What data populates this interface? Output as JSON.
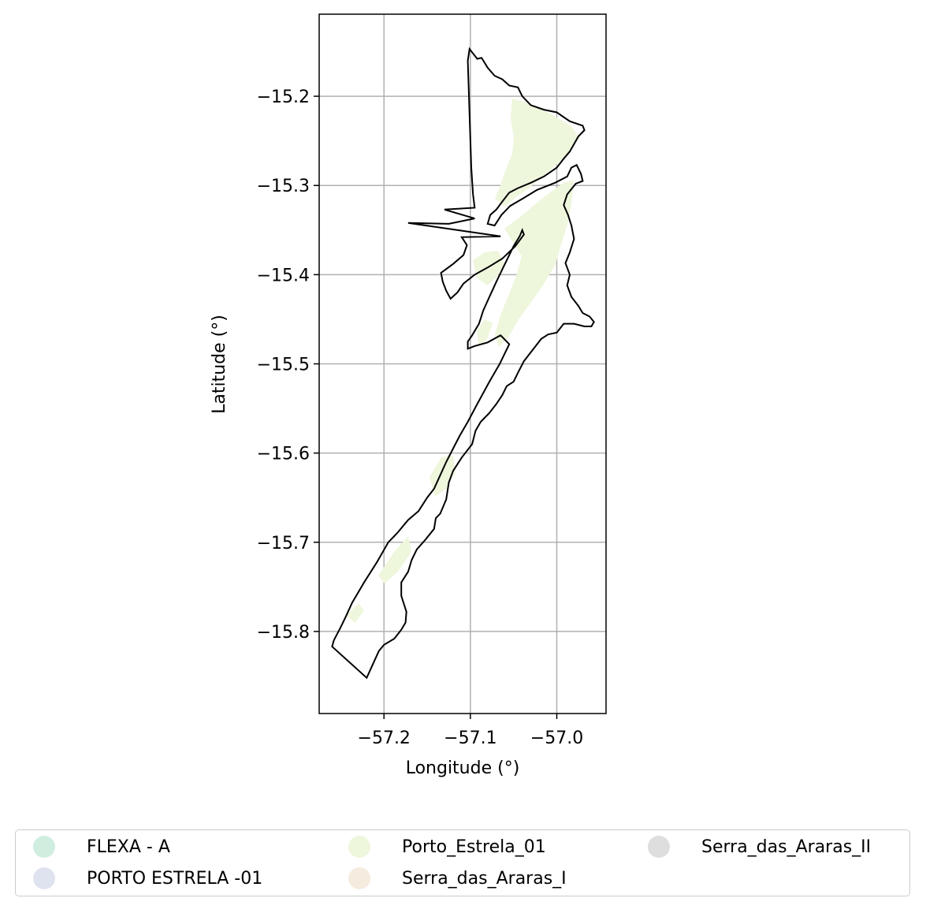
{
  "chart_data": {
    "type": "map",
    "xlabel": "Longitude (°)",
    "ylabel": "Latitude (°)",
    "xlim": [
      -57.275,
      -56.943
    ],
    "ylim": [
      -15.892,
      -15.108
    ],
    "xticks": [
      -57.2,
      -57.1,
      -57.0
    ],
    "xtick_labels": [
      "−57.2",
      "−57.1",
      "−57.0"
    ],
    "yticks": [
      -15.2,
      -15.3,
      -15.4,
      -15.5,
      -15.6,
      -15.7,
      -15.8
    ],
    "ytick_labels": [
      "−15.2",
      "−15.3",
      "−15.4",
      "−15.5",
      "−15.6",
      "−15.7",
      "−15.8"
    ],
    "grid": true,
    "legend_position": "below",
    "boundary": [
      [
        -57.101,
        -15.147
      ],
      [
        -57.097,
        -15.152
      ],
      [
        -57.092,
        -15.158
      ],
      [
        -57.087,
        -15.157
      ],
      [
        -57.08,
        -15.168
      ],
      [
        -57.072,
        -15.177
      ],
      [
        -57.063,
        -15.181
      ],
      [
        -57.055,
        -15.188
      ],
      [
        -57.045,
        -15.19
      ],
      [
        -57.04,
        -15.2
      ],
      [
        -57.03,
        -15.21
      ],
      [
        -57.015,
        -15.215
      ],
      [
        -57.0,
        -15.218
      ],
      [
        -56.985,
        -15.228
      ],
      [
        -56.97,
        -15.233
      ],
      [
        -56.968,
        -15.238
      ],
      [
        -56.975,
        -15.245
      ],
      [
        -56.985,
        -15.262
      ],
      [
        -56.992,
        -15.27
      ],
      [
        -57.0,
        -15.28
      ],
      [
        -57.015,
        -15.29
      ],
      [
        -57.03,
        -15.297
      ],
      [
        -57.045,
        -15.303
      ],
      [
        -57.055,
        -15.308
      ],
      [
        -57.063,
        -15.318
      ],
      [
        -57.07,
        -15.327
      ],
      [
        -57.077,
        -15.333
      ],
      [
        -57.08,
        -15.343
      ],
      [
        -57.072,
        -15.345
      ],
      [
        -57.064,
        -15.333
      ],
      [
        -57.054,
        -15.323
      ],
      [
        -57.04,
        -15.315
      ],
      [
        -57.023,
        -15.305
      ],
      [
        -57.002,
        -15.297
      ],
      [
        -56.988,
        -15.29
      ],
      [
        -56.983,
        -15.28
      ],
      [
        -56.977,
        -15.277
      ],
      [
        -56.972,
        -15.287
      ],
      [
        -56.97,
        -15.295
      ],
      [
        -56.978,
        -15.298
      ],
      [
        -56.988,
        -15.31
      ],
      [
        -56.992,
        -15.322
      ],
      [
        -56.987,
        -15.333
      ],
      [
        -56.983,
        -15.345
      ],
      [
        -56.98,
        -15.36
      ],
      [
        -56.985,
        -15.375
      ],
      [
        -56.99,
        -15.387
      ],
      [
        -56.985,
        -15.4
      ],
      [
        -56.988,
        -15.412
      ],
      [
        -56.983,
        -15.425
      ],
      [
        -56.975,
        -15.435
      ],
      [
        -56.97,
        -15.443
      ],
      [
        -56.962,
        -15.447
      ],
      [
        -56.957,
        -15.453
      ],
      [
        -56.96,
        -15.458
      ],
      [
        -56.968,
        -15.458
      ],
      [
        -56.98,
        -15.455
      ],
      [
        -56.992,
        -15.455
      ],
      [
        -57.0,
        -15.465
      ],
      [
        -57.01,
        -15.467
      ],
      [
        -57.018,
        -15.472
      ],
      [
        -57.03,
        -15.487
      ],
      [
        -57.038,
        -15.497
      ],
      [
        -57.045,
        -15.51
      ],
      [
        -57.05,
        -15.52
      ],
      [
        -57.058,
        -15.525
      ],
      [
        -57.063,
        -15.535
      ],
      [
        -57.07,
        -15.545
      ],
      [
        -57.078,
        -15.555
      ],
      [
        -57.088,
        -15.565
      ],
      [
        -57.094,
        -15.575
      ],
      [
        -57.098,
        -15.59
      ],
      [
        -57.11,
        -15.605
      ],
      [
        -57.12,
        -15.62
      ],
      [
        -57.125,
        -15.633
      ],
      [
        -57.128,
        -15.652
      ],
      [
        -57.135,
        -15.668
      ],
      [
        -57.14,
        -15.673
      ],
      [
        -57.142,
        -15.685
      ],
      [
        -57.152,
        -15.697
      ],
      [
        -57.162,
        -15.708
      ],
      [
        -57.168,
        -15.72
      ],
      [
        -57.172,
        -15.733
      ],
      [
        -57.18,
        -15.745
      ],
      [
        -57.18,
        -15.76
      ],
      [
        -57.174,
        -15.778
      ],
      [
        -57.175,
        -15.79
      ],
      [
        -57.18,
        -15.798
      ],
      [
        -57.188,
        -15.808
      ],
      [
        -57.2,
        -15.815
      ],
      [
        -57.206,
        -15.822
      ],
      [
        -57.22,
        -15.852
      ],
      [
        -57.26,
        -15.817
      ],
      [
        -57.258,
        -15.81
      ],
      [
        -57.25,
        -15.795
      ],
      [
        -57.244,
        -15.783
      ],
      [
        -57.237,
        -15.768
      ],
      [
        -57.223,
        -15.745
      ],
      [
        -57.208,
        -15.722
      ],
      [
        -57.195,
        -15.7
      ],
      [
        -57.185,
        -15.69
      ],
      [
        -57.172,
        -15.675
      ],
      [
        -57.16,
        -15.665
      ],
      [
        -57.15,
        -15.65
      ],
      [
        -57.142,
        -15.64
      ],
      [
        -57.135,
        -15.625
      ],
      [
        -57.128,
        -15.61
      ],
      [
        -57.12,
        -15.595
      ],
      [
        -57.112,
        -15.58
      ],
      [
        -57.103,
        -15.565
      ],
      [
        -57.092,
        -15.545
      ],
      [
        -57.078,
        -15.52
      ],
      [
        -57.066,
        -15.5
      ],
      [
        -57.055,
        -15.478
      ],
      [
        -57.065,
        -15.468
      ],
      [
        -57.08,
        -15.476
      ],
      [
        -57.095,
        -15.48
      ],
      [
        -57.103,
        -15.483
      ],
      [
        -57.103,
        -15.475
      ],
      [
        -57.098,
        -15.468
      ],
      [
        -57.09,
        -15.455
      ],
      [
        -57.085,
        -15.44
      ],
      [
        -57.078,
        -15.425
      ],
      [
        -57.07,
        -15.408
      ],
      [
        -57.062,
        -15.392
      ],
      [
        -57.055,
        -15.378
      ],
      [
        -57.05,
        -15.368
      ],
      [
        -57.043,
        -15.357
      ],
      [
        -57.04,
        -15.35
      ],
      [
        -57.038,
        -15.355
      ],
      [
        -57.048,
        -15.368
      ],
      [
        -57.063,
        -15.382
      ],
      [
        -57.08,
        -15.392
      ],
      [
        -57.095,
        -15.4
      ],
      [
        -57.108,
        -15.41
      ],
      [
        -57.115,
        -15.42
      ],
      [
        -57.123,
        -15.427
      ],
      [
        -57.128,
        -15.418
      ],
      [
        -57.132,
        -15.408
      ],
      [
        -57.134,
        -15.398
      ],
      [
        -57.12,
        -15.388
      ],
      [
        -57.108,
        -15.378
      ],
      [
        -57.104,
        -15.367
      ],
      [
        -57.11,
        -15.358
      ],
      [
        -57.065,
        -15.357
      ],
      [
        -57.172,
        -15.342
      ],
      [
        -57.125,
        -15.343
      ],
      [
        -57.095,
        -15.337
      ],
      [
        -57.13,
        -15.327
      ],
      [
        -57.095,
        -15.325
      ],
      [
        -57.097,
        -15.31
      ],
      [
        -57.099,
        -15.28
      ],
      [
        -57.1,
        -15.25
      ],
      [
        -57.101,
        -15.22
      ],
      [
        -57.102,
        -15.19
      ],
      [
        -57.103,
        -15.16
      ],
      [
        -57.101,
        -15.147
      ]
    ],
    "layers": [
      {
        "name": "FLEXA - A",
        "color": "#d0eedf"
      },
      {
        "name": "PORTO ESTRELA -01",
        "color": "#dfe3f0"
      },
      {
        "name": "Porto_Estrela_01",
        "color": "#eef6dc"
      },
      {
        "name": "Serra_das_Araras_I",
        "color": "#f5ebdf"
      },
      {
        "name": "Serra_das_Araras_II",
        "color": "#dedede"
      }
    ]
  },
  "legend": {
    "items": [
      {
        "label": "FLEXA - A",
        "color": "#d0eedf"
      },
      {
        "label": "PORTO ESTRELA -01",
        "color": "#dfe3f0"
      },
      {
        "label": "Porto_Estrela_01",
        "color": "#eef6dc"
      },
      {
        "label": "Serra_das_Araras_I",
        "color": "#f5ebdf"
      },
      {
        "label": "Serra_das_Araras_II",
        "color": "#dedede"
      }
    ]
  }
}
